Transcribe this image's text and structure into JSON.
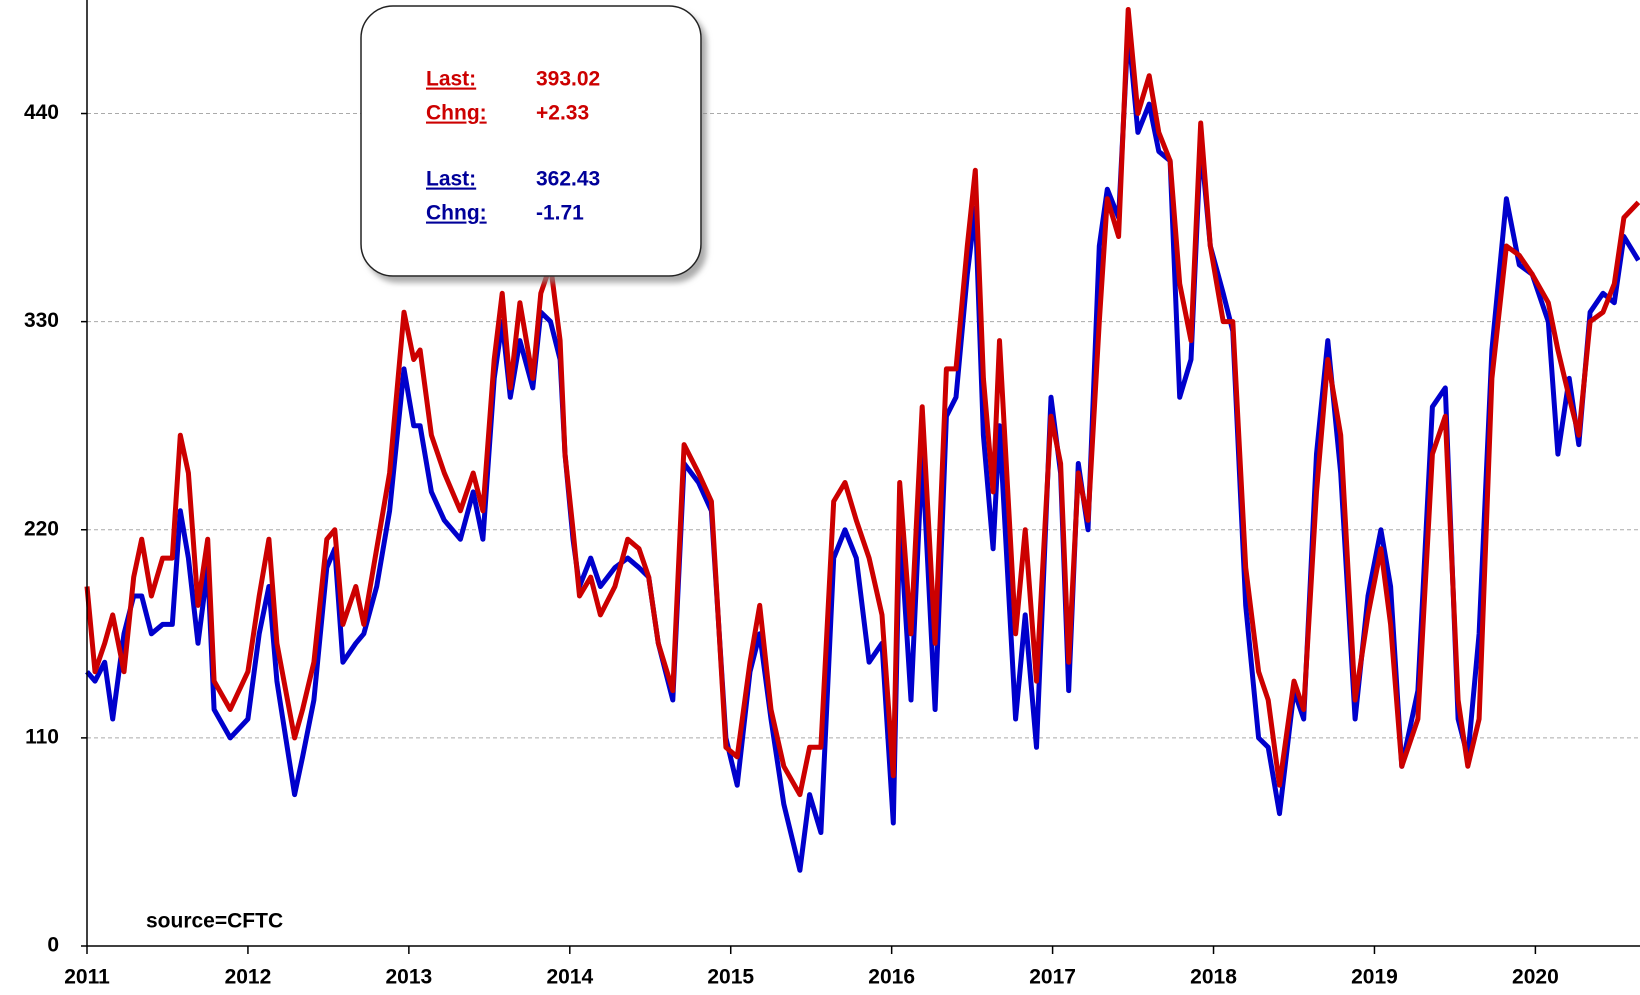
{
  "chart_data": {
    "type": "line",
    "xlim": [
      2011,
      2020.65
    ],
    "xticks": [
      2011,
      2012,
      2013,
      2014,
      2015,
      2016,
      2017,
      2018,
      2019,
      2020
    ],
    "ylim": [
      0,
      500
    ],
    "yticks": [
      0,
      110,
      220,
      330,
      440
    ],
    "grid": true,
    "source": "source=CFTC",
    "x": [
      2011.0,
      2011.05,
      2011.11,
      2011.16,
      2011.23,
      2011.29,
      2011.34,
      2011.4,
      2011.47,
      2011.53,
      2011.58,
      2011.63,
      2011.69,
      2011.75,
      2011.79,
      2011.89,
      2012.0,
      2012.07,
      2012.13,
      2012.18,
      2012.29,
      2012.34,
      2012.41,
      2012.49,
      2012.54,
      2012.59,
      2012.67,
      2012.72,
      2012.8,
      2012.88,
      2012.97,
      2013.03,
      2013.07,
      2013.14,
      2013.22,
      2013.32,
      2013.4,
      2013.46,
      2013.53,
      2013.58,
      2013.63,
      2013.69,
      2013.77,
      2013.82,
      2013.88,
      2013.94,
      2013.97,
      2014.02,
      2014.06,
      2014.13,
      2014.19,
      2014.28,
      2014.36,
      2014.43,
      2014.49,
      2014.55,
      2014.64,
      2014.71,
      2014.8,
      2014.88,
      2014.97,
      2015.04,
      2015.12,
      2015.18,
      2015.25,
      2015.33,
      2015.43,
      2015.49,
      2015.56,
      2015.64,
      2015.71,
      2015.78,
      2015.86,
      2015.94,
      2016.01,
      2016.05,
      2016.12,
      2016.19,
      2016.27,
      2016.34,
      2016.4,
      2016.47,
      2016.52,
      2016.57,
      2016.63,
      2016.67,
      2016.77,
      2016.83,
      2016.9,
      2016.99,
      2017.05,
      2017.1,
      2017.16,
      2017.22,
      2017.29,
      2017.34,
      2017.41,
      2017.47,
      2017.53,
      2017.6,
      2017.66,
      2017.73,
      2017.79,
      2017.86,
      2017.92,
      2017.98,
      2018.06,
      2018.12,
      2018.2,
      2018.28,
      2018.34,
      2018.41,
      2018.5,
      2018.56,
      2018.64,
      2018.71,
      2018.79,
      2018.88,
      2018.96,
      2019.04,
      2019.1,
      2019.17,
      2019.27,
      2019.36,
      2019.44,
      2019.52,
      2019.58,
      2019.65,
      2019.73,
      2019.82,
      2019.9,
      2019.98,
      2020.08,
      2020.14,
      2020.21,
      2020.27,
      2020.34,
      2020.42,
      2020.49,
      2020.55,
      2020.64
    ],
    "series": [
      {
        "color": "#0000cc",
        "values": [
          145,
          140,
          150,
          120,
          165,
          185,
          185,
          165,
          170,
          170,
          230,
          205,
          160,
          200,
          125,
          110,
          120,
          165,
          190,
          140,
          80,
          100,
          130,
          200,
          210,
          150,
          160,
          165,
          190,
          230,
          305,
          275,
          275,
          240,
          225,
          215,
          240,
          215,
          300,
          330,
          290,
          320,
          295,
          335,
          330,
          310,
          260,
          215,
          190,
          205,
          190,
          200,
          205,
          200,
          195,
          160,
          130,
          255,
          245,
          230,
          110,
          85,
          145,
          165,
          120,
          75,
          40,
          80,
          60,
          205,
          220,
          205,
          150,
          160,
          65,
          225,
          130,
          260,
          125,
          280,
          290,
          355,
          390,
          270,
          210,
          275,
          120,
          175,
          105,
          290,
          250,
          135,
          255,
          220,
          370,
          400,
          385,
          485,
          430,
          445,
          420,
          415,
          290,
          310,
          425,
          370,
          345,
          325,
          180,
          110,
          105,
          70,
          135,
          120,
          260,
          320,
          250,
          120,
          185,
          220,
          190,
          95,
          135,
          285,
          295,
          120,
          100,
          165,
          315,
          395,
          360,
          355,
          330,
          260,
          300,
          265,
          335,
          345,
          340,
          375,
          362.43
        ]
      },
      {
        "color": "#cc0000",
        "values": [
          190,
          145,
          160,
          175,
          145,
          195,
          215,
          185,
          205,
          205,
          270,
          250,
          180,
          215,
          140,
          125,
          145,
          185,
          215,
          160,
          110,
          125,
          150,
          215,
          220,
          170,
          190,
          170,
          210,
          250,
          335,
          310,
          315,
          270,
          250,
          230,
          250,
          230,
          310,
          345,
          295,
          340,
          300,
          345,
          360,
          320,
          260,
          220,
          185,
          195,
          175,
          190,
          215,
          210,
          195,
          160,
          135,
          265,
          250,
          235,
          105,
          100,
          150,
          180,
          125,
          95,
          80,
          105,
          105,
          235,
          245,
          225,
          205,
          175,
          90,
          245,
          165,
          285,
          160,
          305,
          305,
          370,
          410,
          300,
          240,
          320,
          165,
          220,
          140,
          280,
          255,
          150,
          250,
          225,
          330,
          395,
          375,
          495,
          440,
          460,
          430,
          415,
          350,
          320,
          435,
          370,
          330,
          330,
          200,
          145,
          130,
          85,
          140,
          125,
          240,
          310,
          270,
          130,
          175,
          210,
          170,
          95,
          120,
          260,
          280,
          130,
          95,
          120,
          300,
          370,
          365,
          355,
          340,
          315,
          290,
          270,
          330,
          335,
          350,
          385,
          393.02
        ]
      }
    ],
    "annotations": [
      {
        "label": "Last:",
        "value": "393.02",
        "color": "#cc0000"
      },
      {
        "label": "Chng:",
        "value": "+2.33",
        "color": "#cc0000"
      },
      {
        "label": "Last:",
        "value": "362.43",
        "color": "#000099"
      },
      {
        "label": "Chng:",
        "value": "-1.71",
        "color": "#000099"
      }
    ]
  }
}
